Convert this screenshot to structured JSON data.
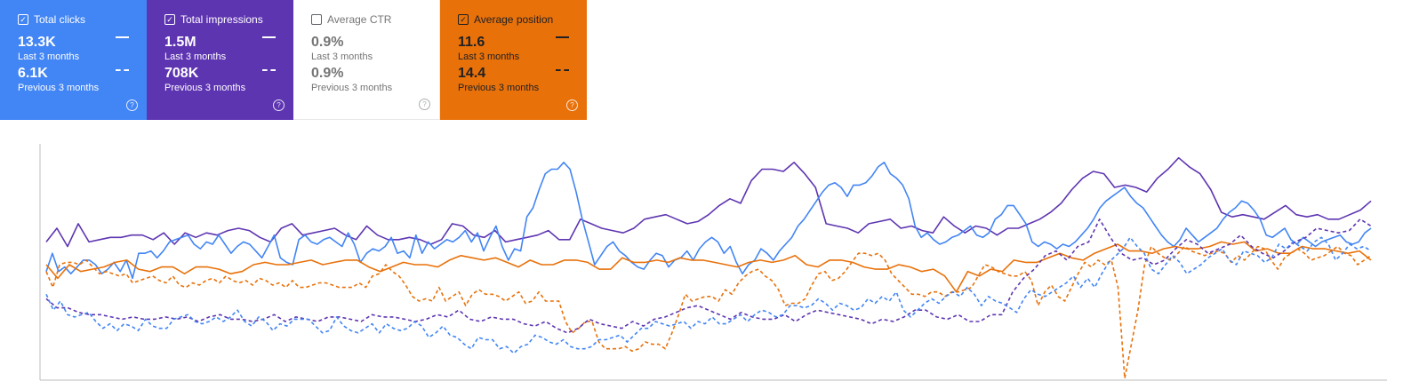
{
  "cards": [
    {
      "key": "clicks",
      "label": "Total clicks",
      "checked": true,
      "current_value": "13.3K",
      "current_period": "Last 3 months",
      "previous_value": "6.1K",
      "previous_period": "Previous 3 months",
      "color": "#4285f4"
    },
    {
      "key": "impressions",
      "label": "Total impressions",
      "checked": true,
      "current_value": "1.5M",
      "current_period": "Last 3 months",
      "previous_value": "708K",
      "previous_period": "Previous 3 months",
      "color": "#5e35b1"
    },
    {
      "key": "ctr",
      "label": "Average CTR",
      "checked": false,
      "current_value": "0.9%",
      "current_period": "Last 3 months",
      "previous_value": "0.9%",
      "previous_period": "Previous 3 months",
      "color": "#ffffff"
    },
    {
      "key": "position",
      "label": "Average position",
      "checked": true,
      "current_value": "11.6",
      "current_period": "Last 3 months",
      "previous_value": "14.4",
      "previous_period": "Previous 3 months",
      "color": "#e8710a"
    }
  ],
  "chart_data": {
    "type": "line",
    "ylim": [
      0,
      100
    ],
    "grid": false,
    "series": [
      {
        "color": "#5e35b1",
        "dashed": false,
        "values": [
          60,
          66,
          58,
          68,
          60,
          61,
          62,
          62,
          63,
          63,
          61,
          64,
          59,
          64,
          62,
          64,
          63,
          65,
          66,
          65,
          62,
          60,
          66,
          68,
          63,
          64,
          65,
          66,
          63,
          61,
          67,
          63,
          61,
          61,
          62,
          61,
          59,
          61,
          68,
          67,
          63,
          62,
          65,
          60,
          61,
          62,
          63,
          65,
          61,
          61,
          70,
          68,
          66,
          65,
          64,
          66,
          70,
          71,
          72,
          70,
          68,
          69,
          72,
          76,
          79,
          77,
          87,
          92,
          92,
          91,
          95,
          90,
          84,
          68,
          67,
          66,
          64,
          68,
          69,
          70,
          66,
          67,
          65,
          64,
          71,
          67,
          64,
          67,
          66,
          63,
          66,
          66,
          68,
          70,
          73,
          77,
          83,
          88,
          91,
          90,
          84,
          85,
          84,
          82,
          88,
          92,
          97,
          93,
          90,
          83,
          73,
          71,
          72,
          71,
          70,
          73,
          76,
          72,
          71,
          72,
          70,
          70,
          72,
          74,
          78
        ]
      },
      {
        "color": "#4285f4",
        "dashed": false,
        "values": [
          47,
          55,
          47,
          49,
          46,
          49,
          52,
          52,
          50,
          46,
          48,
          51,
          47,
          52,
          44,
          55,
          55,
          56,
          53,
          56,
          60,
          61,
          62,
          63,
          59,
          57,
          60,
          59,
          63,
          59,
          55,
          58,
          60,
          59,
          56,
          53,
          58,
          63,
          53,
          51,
          50,
          61,
          63,
          60,
          59,
          61,
          62,
          60,
          58,
          64,
          59,
          51,
          55,
          57,
          56,
          58,
          62,
          55,
          56,
          53,
          63,
          55,
          60,
          57,
          59,
          61,
          60,
          62,
          65,
          60,
          64,
          56,
          62,
          67,
          58,
          52,
          57,
          56,
          71,
          75,
          83,
          90,
          92,
          92,
          95,
          92,
          82,
          70,
          60,
          50,
          54,
          58,
          60,
          56,
          54,
          51,
          49,
          48,
          52,
          55,
          54,
          49,
          52,
          53,
          56,
          52,
          57,
          60,
          62,
          60,
          55,
          58,
          51,
          46,
          50,
          52,
          57,
          55,
          52,
          56,
          59,
          62,
          67,
          70,
          74,
          78,
          82,
          85,
          86,
          84,
          80,
          85,
          85,
          86,
          89,
          93,
          95,
          90,
          88,
          85,
          79,
          67,
          62,
          64,
          61,
          59,
          60,
          62,
          63,
          65,
          67,
          63,
          62,
          64,
          70,
          72,
          76,
          76,
          72,
          68,
          60,
          58,
          60,
          59,
          57,
          59,
          58,
          60,
          63,
          66,
          70,
          75,
          78,
          80,
          82,
          84,
          80,
          77,
          75,
          71,
          67,
          63,
          60,
          58,
          61,
          66,
          63,
          60,
          62,
          64,
          66,
          70,
          73,
          75,
          78,
          77,
          74,
          70,
          63,
          62,
          64,
          66,
          61,
          59,
          62,
          60,
          58,
          60,
          61,
          62,
          63,
          60,
          59,
          60,
          64,
          66
        ]
      },
      {
        "color": "#e8710a",
        "dashed": false,
        "values": [
          50,
          44,
          50,
          47,
          48,
          49,
          51,
          52,
          48,
          47,
          49,
          49,
          46,
          49,
          49,
          48,
          46,
          47,
          50,
          51,
          50,
          50,
          51,
          52,
          50,
          51,
          52,
          52,
          49,
          47,
          49,
          51,
          50,
          50,
          49,
          52,
          54,
          53,
          52,
          53,
          51,
          49,
          52,
          50,
          50,
          52,
          52,
          51,
          48,
          48,
          53,
          51,
          51,
          52,
          51,
          53,
          52,
          52,
          51,
          50,
          49,
          51,
          52,
          51,
          52,
          54,
          50,
          49,
          52,
          52,
          51,
          49,
          48,
          48,
          50,
          49,
          47,
          48,
          45,
          38,
          47,
          45,
          48,
          47,
          52,
          51,
          51,
          53,
          55,
          53,
          52,
          55,
          57,
          59,
          56,
          56,
          55,
          57,
          58,
          57,
          57,
          58,
          60,
          59,
          60,
          56,
          57,
          55,
          55,
          58,
          57,
          57,
          56,
          55,
          56,
          52
        ]
      },
      {
        "color": "#e8710a",
        "dashed": true,
        "values": [
          47,
          40,
          50,
          51,
          51,
          50,
          52,
          49,
          46,
          47,
          46,
          45,
          46,
          42,
          43,
          44,
          45,
          43,
          42,
          45,
          41,
          40,
          42,
          41,
          43,
          44,
          42,
          45,
          43,
          42,
          43,
          41,
          44,
          43,
          41,
          42,
          40,
          43,
          40,
          40,
          41,
          42,
          42,
          41,
          40,
          40,
          40,
          42,
          40,
          45,
          46,
          50,
          47,
          45,
          41,
          36,
          34,
          35,
          34,
          40,
          34,
          36,
          38,
          32,
          37,
          39,
          37,
          37,
          36,
          34,
          36,
          38,
          33,
          34,
          38,
          34,
          34,
          34,
          25,
          20,
          22,
          25,
          25,
          16,
          13,
          13,
          13,
          14,
          12,
          13,
          16,
          15,
          15,
          13,
          20,
          28,
          37,
          34,
          35,
          36,
          36,
          34,
          39,
          37,
          42,
          45,
          47,
          48,
          45,
          43,
          39,
          32,
          33,
          33,
          35,
          41,
          46,
          47,
          43,
          44,
          47,
          51,
          55,
          55,
          54,
          55,
          52,
          46,
          43,
          40,
          37,
          37,
          36,
          38,
          38,
          36,
          38,
          38,
          39,
          40,
          45,
          50,
          49,
          47,
          46,
          45,
          45,
          47,
          43,
          32,
          38,
          41,
          36,
          34,
          40,
          46,
          51,
          49,
          52,
          50,
          52,
          40,
          0,
          15,
          30,
          50,
          58,
          55,
          53,
          52,
          55,
          58,
          56,
          55,
          54,
          55,
          56,
          55,
          51,
          54,
          52,
          55,
          58,
          57,
          52,
          48,
          53,
          55,
          57,
          55,
          52,
          53,
          54,
          56,
          58,
          55,
          54,
          50,
          52,
          54
        ]
      },
      {
        "color": "#5e35b1",
        "dashed": true,
        "values": [
          35,
          31,
          31,
          29,
          28,
          28,
          27,
          26,
          27,
          26,
          26,
          27,
          26,
          27,
          25,
          27,
          28,
          26,
          26,
          25,
          26,
          28,
          25,
          27,
          26,
          25,
          27,
          27,
          26,
          25,
          28,
          27,
          27,
          26,
          25,
          26,
          28,
          27,
          30,
          26,
          25,
          27,
          26,
          26,
          24,
          23,
          25,
          22,
          20,
          22,
          26,
          24,
          23,
          22,
          25,
          23,
          26,
          27,
          29,
          31,
          32,
          30,
          28,
          26,
          29,
          27,
          26,
          26,
          28,
          25,
          28,
          30,
          29,
          28,
          27,
          26,
          24,
          26,
          25,
          27,
          30,
          30,
          27,
          26,
          28,
          25,
          25,
          28,
          28,
          38,
          44,
          48,
          54,
          56,
          52,
          58,
          60,
          70,
          62,
          55,
          52,
          53,
          50,
          52,
          57,
          61,
          59,
          55,
          57,
          59,
          63,
          58,
          55,
          53,
          56,
          60,
          62,
          66,
          65,
          64,
          65,
          70,
          67
        ]
      },
      {
        "color": "#4285f4",
        "dashed": true,
        "values": [
          37,
          30,
          34,
          28,
          27,
          28,
          29,
          25,
          22,
          24,
          21,
          24,
          23,
          21,
          26,
          23,
          22,
          22,
          26,
          27,
          28,
          25,
          24,
          25,
          27,
          25,
          27,
          30,
          25,
          23,
          27,
          25,
          21,
          24,
          23,
          26,
          26,
          26,
          23,
          20,
          21,
          27,
          23,
          21,
          20,
          22,
          24,
          20,
          24,
          22,
          21,
          22,
          25,
          23,
          18,
          20,
          23,
          19,
          18,
          15,
          13,
          18,
          17,
          17,
          13,
          14,
          11,
          14,
          15,
          19,
          18,
          16,
          15,
          17,
          14,
          13,
          13,
          14,
          17,
          17,
          18,
          19,
          16,
          19,
          22,
          22,
          25,
          24,
          23,
          24,
          25,
          22,
          25,
          24,
          27,
          24,
          24,
          26,
          28,
          25,
          28,
          30,
          29,
          27,
          28,
          32,
          32,
          31,
          32,
          35,
          33,
          30,
          33,
          32,
          30,
          31,
          35,
          33,
          36,
          34,
          38,
          30,
          27,
          30,
          33,
          35,
          33,
          36,
          38,
          36,
          40,
          37,
          32,
          36,
          34,
          33,
          31,
          29,
          35,
          39,
          37,
          36,
          38,
          40,
          42,
          45,
          40,
          44,
          40,
          46,
          51,
          54,
          57,
          62,
          58,
          55,
          48,
          46,
          50,
          54,
          51,
          46,
          48,
          50,
          53,
          55,
          57,
          52,
          50,
          56,
          55,
          54,
          51,
          53,
          59,
          57,
          60,
          58,
          56,
          60,
          62,
          59,
          52,
          55,
          59,
          57,
          58,
          56
        ]
      }
    ]
  }
}
